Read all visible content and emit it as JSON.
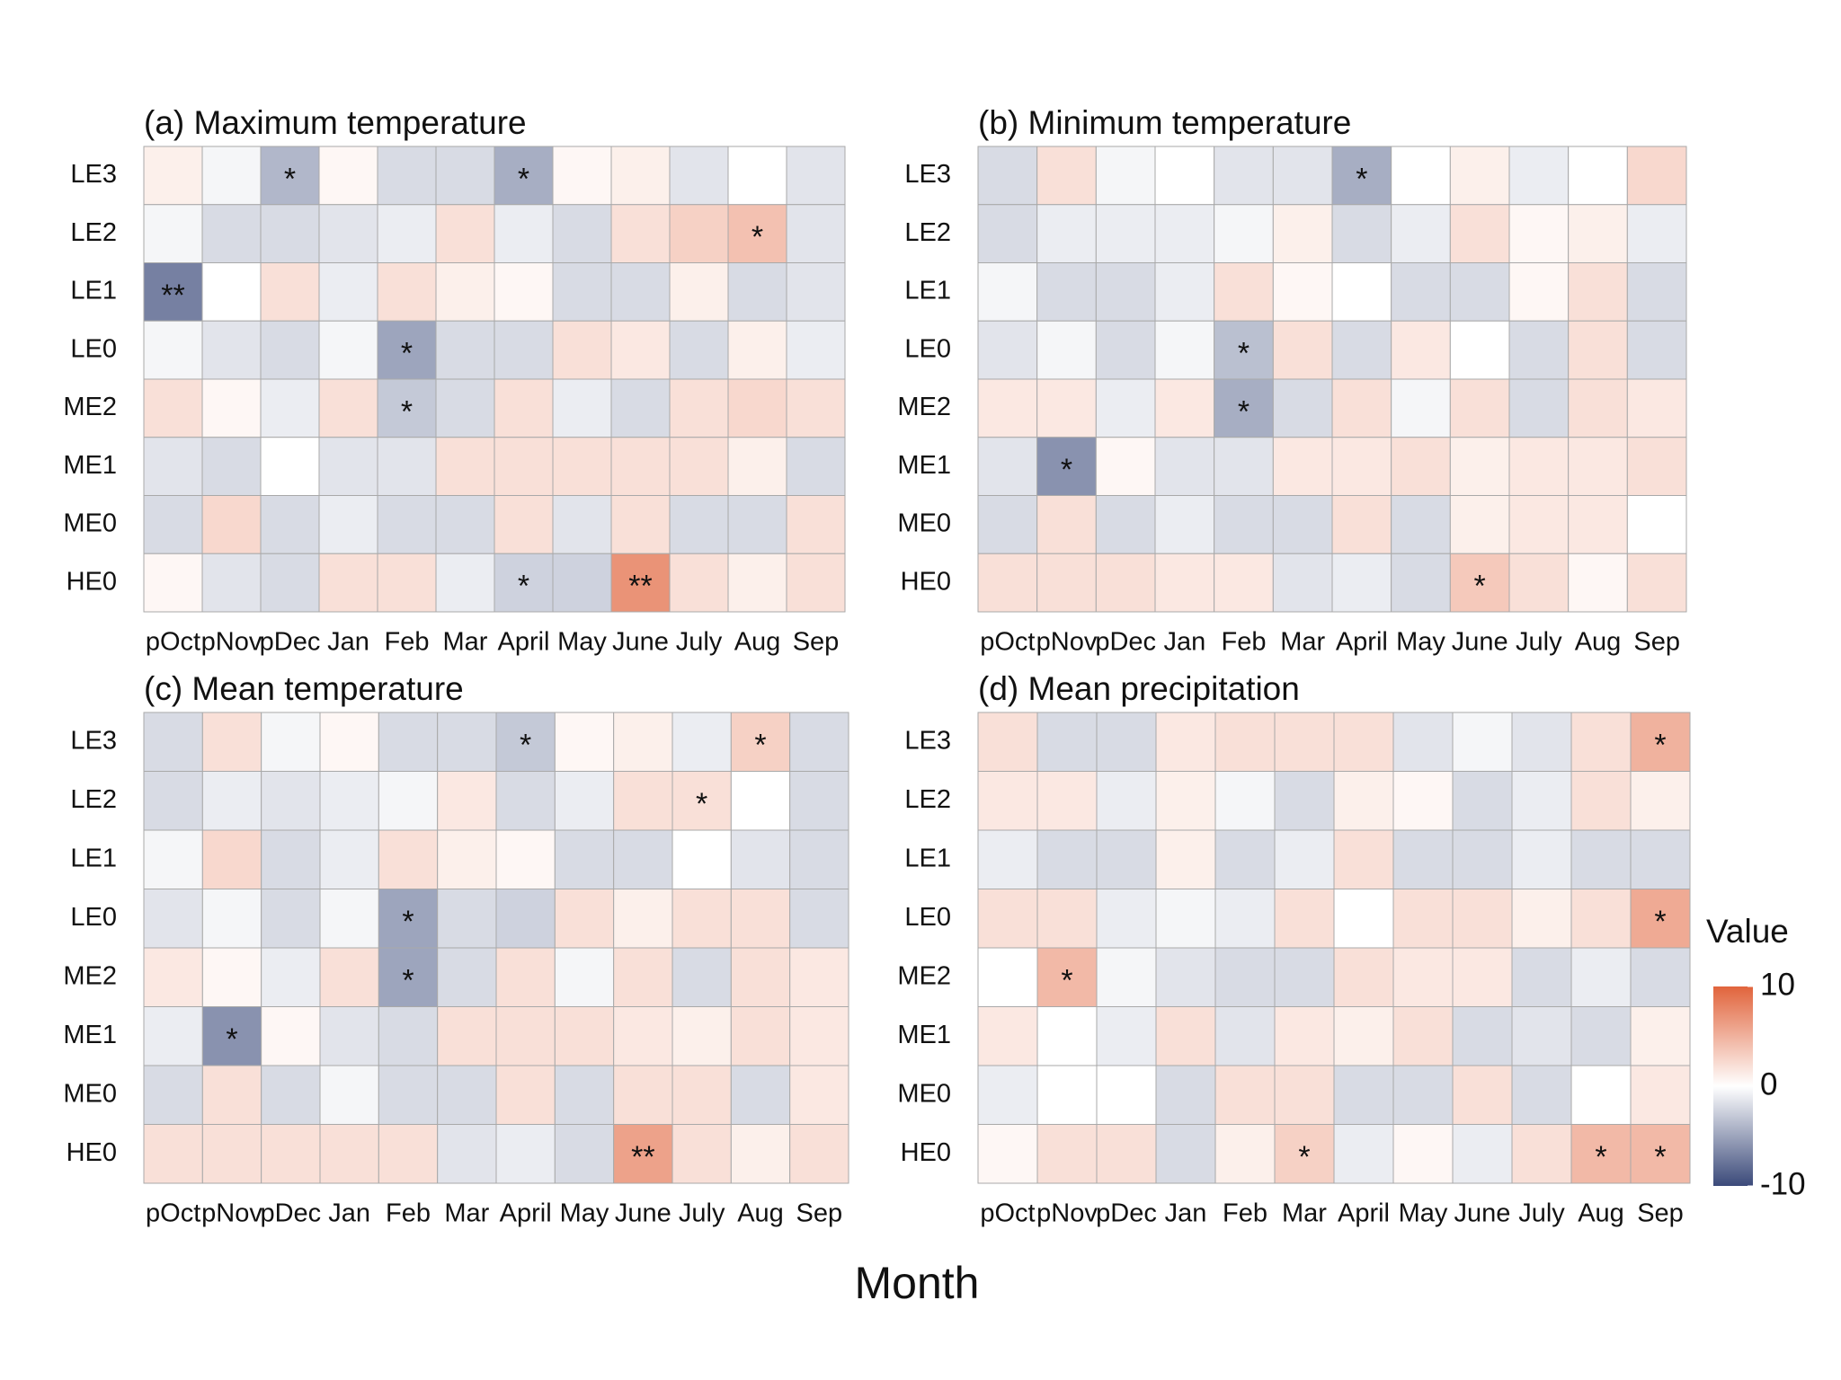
{
  "chart_data": [
    {
      "type": "heatmap",
      "title": "(a) Maximum temperature",
      "x": [
        "pOct",
        "pNov",
        "pDec",
        "Jan",
        "Feb",
        "Mar",
        "April",
        "May",
        "June",
        "July",
        "Aug",
        "Sep"
      ],
      "y": [
        "LE3",
        "LE2",
        "LE1",
        "LE0",
        "ME2",
        "ME1",
        "ME0",
        "HE0"
      ],
      "values": [
        [
          1,
          -0.5,
          -4,
          0.5,
          -2,
          -2,
          -4.5,
          0.5,
          1,
          -1.5,
          0,
          -1.5
        ],
        [
          -0.5,
          -2,
          -2,
          -1.5,
          -1,
          2,
          -1,
          -2,
          2,
          3,
          4,
          -1.5
        ],
        [
          -7,
          0,
          2,
          -1,
          2,
          1,
          0.5,
          -2,
          -2,
          1,
          -2,
          -1.5
        ],
        [
          -0.5,
          -1.5,
          -2,
          -0.5,
          -5,
          -2,
          -2,
          2,
          1.5,
          -2,
          1,
          -1
        ],
        [
          2,
          0.5,
          -1,
          2,
          -3,
          -2,
          2,
          -1,
          -2,
          2,
          2.5,
          2
        ],
        [
          -1.5,
          -2,
          0,
          -1.5,
          -1.5,
          2,
          2,
          2,
          2,
          2,
          1,
          -2
        ],
        [
          -2,
          2.5,
          -2,
          -1,
          -2,
          -2,
          2,
          -1.5,
          2,
          -2,
          -2,
          2
        ],
        [
          0.5,
          -1.5,
          -2,
          2,
          2,
          -1,
          -2.5,
          -2.5,
          7,
          2,
          1,
          2
        ]
      ],
      "annotations": [
        {
          "x": "pDec",
          "y": "LE3",
          "text": "*"
        },
        {
          "x": "April",
          "y": "LE3",
          "text": "*"
        },
        {
          "x": "Aug",
          "y": "LE2",
          "text": "*"
        },
        {
          "x": "pOct",
          "y": "LE1",
          "text": "**"
        },
        {
          "x": "Feb",
          "y": "LE0",
          "text": "*"
        },
        {
          "x": "Feb",
          "y": "ME2",
          "text": "*"
        },
        {
          "x": "April",
          "y": "HE0",
          "text": "*"
        },
        {
          "x": "June",
          "y": "HE0",
          "text": "**"
        }
      ]
    },
    {
      "type": "heatmap",
      "title": "(b) Minimum temperature",
      "x": [
        "pOct",
        "pNov",
        "pDec",
        "Jan",
        "Feb",
        "Mar",
        "April",
        "May",
        "June",
        "July",
        "Aug",
        "Sep"
      ],
      "y": [
        "LE3",
        "LE2",
        "LE1",
        "LE0",
        "ME2",
        "ME1",
        "ME0",
        "HE0"
      ],
      "values": [
        [
          -2,
          2,
          -0.5,
          0,
          -1.5,
          -1.5,
          -4.5,
          0,
          1,
          -1,
          0,
          2.5
        ],
        [
          -2,
          -1,
          -1,
          -1,
          -0.5,
          1,
          -2,
          -1,
          2,
          0.5,
          1,
          -1
        ],
        [
          -0.5,
          -2,
          -2,
          -1,
          2,
          0.5,
          0,
          -2,
          -2,
          0.5,
          2,
          -2
        ],
        [
          -1.5,
          -0.5,
          -2,
          -0.5,
          -3.5,
          2,
          -2,
          1.5,
          0,
          -2,
          2,
          -2
        ],
        [
          1.5,
          1.5,
          -1,
          1.5,
          -4.5,
          -2,
          2,
          -0.5,
          2,
          -2,
          2,
          1.5
        ],
        [
          -1.5,
          -6,
          0.5,
          -1.5,
          -1.5,
          1.5,
          1.5,
          2,
          1,
          1.5,
          1.5,
          2
        ],
        [
          -2,
          2,
          -2,
          -1,
          -2,
          -2,
          2,
          -2,
          1,
          1.5,
          1.5,
          0
        ],
        [
          2,
          2,
          2,
          1.5,
          1.5,
          -1.5,
          -1,
          -2,
          3.5,
          2,
          0.5,
          2
        ]
      ],
      "annotations": [
        {
          "x": "April",
          "y": "LE3",
          "text": "*"
        },
        {
          "x": "Feb",
          "y": "LE0",
          "text": "*"
        },
        {
          "x": "Feb",
          "y": "ME2",
          "text": "*"
        },
        {
          "x": "pNov",
          "y": "ME1",
          "text": "*"
        },
        {
          "x": "June",
          "y": "HE0",
          "text": "*"
        }
      ]
    },
    {
      "type": "heatmap",
      "title": "(c) Mean temperature",
      "x": [
        "pOct",
        "pNov",
        "pDec",
        "Jan",
        "Feb",
        "Mar",
        "April",
        "May",
        "June",
        "July",
        "Aug",
        "Sep"
      ],
      "y": [
        "LE3",
        "LE2",
        "LE1",
        "LE0",
        "ME2",
        "ME1",
        "ME0",
        "HE0"
      ],
      "values": [
        [
          -2,
          2,
          -0.5,
          0.5,
          -2,
          -2,
          -3,
          0.5,
          1,
          -1,
          3,
          -2
        ],
        [
          -2,
          -1,
          -1.5,
          -1,
          -0.5,
          1.5,
          -2,
          -1,
          2,
          2,
          0,
          -2
        ],
        [
          -0.5,
          2.5,
          -2,
          -1,
          2,
          1,
          0.5,
          -2,
          -2,
          0,
          -1.5,
          -2
        ],
        [
          -1.5,
          -0.5,
          -2,
          -0.5,
          -5,
          -2,
          -2.5,
          2,
          1,
          2,
          2,
          -2
        ],
        [
          1.5,
          0.5,
          -1,
          2,
          -5,
          -2,
          2,
          -0.5,
          2,
          -2,
          2,
          1.5
        ],
        [
          -1,
          -6,
          0.5,
          -1.5,
          -2,
          2,
          2,
          2,
          1.5,
          1,
          2,
          1.5
        ],
        [
          -2,
          2,
          -2,
          -0.5,
          -2,
          -2,
          2,
          -2,
          2,
          2,
          -2,
          1.5
        ],
        [
          2,
          2,
          2,
          2,
          2,
          -1.5,
          -1,
          -2,
          6,
          2,
          1,
          2
        ]
      ],
      "annotations": [
        {
          "x": "April",
          "y": "LE3",
          "text": "*"
        },
        {
          "x": "Aug",
          "y": "LE3",
          "text": "*"
        },
        {
          "x": "July",
          "y": "LE2",
          "text": "*"
        },
        {
          "x": "Feb",
          "y": "LE0",
          "text": "*"
        },
        {
          "x": "Feb",
          "y": "ME2",
          "text": "*"
        },
        {
          "x": "pNov",
          "y": "ME1",
          "text": "*"
        },
        {
          "x": "June",
          "y": "HE0",
          "text": "**"
        }
      ]
    },
    {
      "type": "heatmap",
      "title": "(d) Mean precipitation",
      "x": [
        "pOct",
        "pNov",
        "pDec",
        "Jan",
        "Feb",
        "Mar",
        "April",
        "May",
        "June",
        "July",
        "Aug",
        "Sep"
      ],
      "y": [
        "LE3",
        "LE2",
        "LE1",
        "LE0",
        "ME2",
        "ME1",
        "ME0",
        "HE0"
      ],
      "values": [
        [
          2,
          -2,
          -2,
          1.5,
          2,
          2,
          2,
          -1.5,
          -0.5,
          -1.5,
          2,
          5
        ],
        [
          1.5,
          1.5,
          -1,
          1,
          -0.5,
          -2,
          1,
          0.5,
          -2,
          -1,
          2,
          1
        ],
        [
          -1,
          -2,
          -2,
          1,
          -2,
          -1,
          2,
          -2,
          -2,
          -1,
          -2,
          -2
        ],
        [
          2,
          2,
          -1,
          -0.5,
          -1,
          2,
          0,
          2,
          2,
          1,
          2,
          5.5
        ],
        [
          0,
          4.5,
          -0.5,
          -1.5,
          -2,
          -2,
          2,
          1.5,
          1.5,
          -2,
          -1,
          -2
        ],
        [
          1.5,
          0,
          -1,
          2,
          -1.5,
          1.5,
          1,
          2,
          -2,
          -1.5,
          -2,
          1
        ],
        [
          -1,
          0,
          0,
          -2,
          2,
          2,
          -2,
          -2,
          2,
          -2,
          0,
          1.5
        ],
        [
          0.5,
          2,
          2,
          -2,
          1,
          3,
          -1,
          0.5,
          -1,
          2,
          4.5,
          4.5
        ]
      ],
      "annotations": [
        {
          "x": "Sep",
          "y": "LE3",
          "text": "*"
        },
        {
          "x": "Sep",
          "y": "LE0",
          "text": "*"
        },
        {
          "x": "pNov",
          "y": "ME2",
          "text": "*"
        },
        {
          "x": "Mar",
          "y": "HE0",
          "text": "*"
        },
        {
          "x": "Aug",
          "y": "HE0",
          "text": "*"
        },
        {
          "x": "Sep",
          "y": "HE0",
          "text": "*"
        }
      ]
    }
  ],
  "xlabel": "Month",
  "colorbar": {
    "title": "Value",
    "lim": [
      -10,
      10
    ],
    "ticks": [
      10,
      0,
      -10
    ],
    "colors": [
      "#3b4a7a",
      "#ffffff",
      "#e1643c"
    ]
  }
}
